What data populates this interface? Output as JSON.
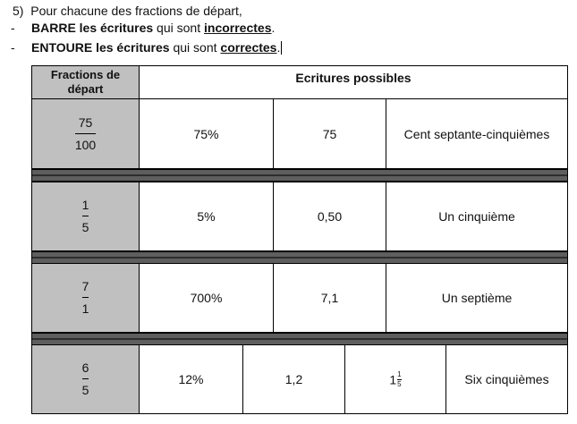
{
  "instructions": {
    "line1": {
      "num": "5)",
      "text": "Pour chacune des fractions de départ,"
    },
    "line2": {
      "dash": "-",
      "strong": "BARRE les écritures",
      "mid": " qui sont ",
      "key": "incorrectes",
      "end": "."
    },
    "line3": {
      "dash": "-",
      "strong": "ENTOURE les écritures",
      "mid": " qui sont ",
      "key": "correctes",
      "end": "."
    }
  },
  "table": {
    "head_col1": "Fractions de départ",
    "head_col2": "Ecritures possibles",
    "rows": [
      {
        "num": "75",
        "den": "100",
        "options": [
          "75%",
          "75",
          "Cent septante-cinquièmes"
        ]
      },
      {
        "num": "1",
        "den": "5",
        "options": [
          "5%",
          "0,50",
          "Un cinquième"
        ]
      },
      {
        "num": "7",
        "den": "1",
        "options": [
          "700%",
          "7,1",
          "Un septième"
        ]
      },
      {
        "num": "6",
        "den": "5",
        "options": [
          "12%",
          "1,2",
          "Six cinquièmes"
        ],
        "mixed": {
          "whole": "1",
          "num": "1",
          "den": "5"
        }
      }
    ]
  }
}
